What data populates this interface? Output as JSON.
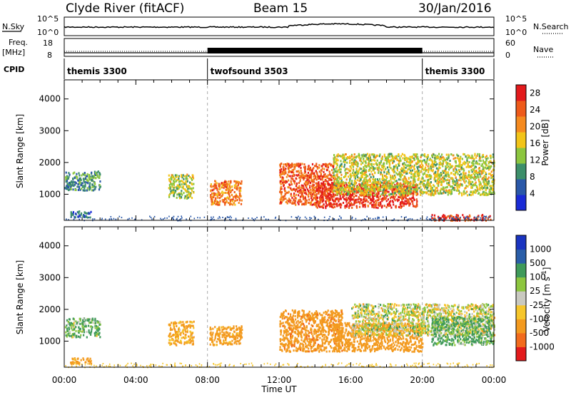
{
  "header": {
    "station": "Clyde River (fitACF)",
    "beam": "Beam 15",
    "date": "30/Jan/2016"
  },
  "top_strip": {
    "left_label": "N.Sky",
    "left_ticks": [
      "10^5",
      "10^0"
    ],
    "right_ticks": [
      "10^5",
      "10^0"
    ],
    "right_label": "N.Search"
  },
  "freq_strip": {
    "label_line1": "Freq.",
    "label_line2": "[MHz]",
    "left_ticks": [
      "18",
      "8"
    ],
    "right_ticks": [
      "60",
      "0"
    ],
    "right_label": "Nave"
  },
  "cpid": {
    "label": "CPID",
    "segments": [
      {
        "name": "themis 3300",
        "start_hour": 0,
        "end_hour": 8
      },
      {
        "name": "twofsound 3503",
        "start_hour": 8,
        "end_hour": 20
      },
      {
        "name": "themis 3300",
        "start_hour": 20,
        "end_hour": 24
      }
    ]
  },
  "colors": {
    "power_scale": [
      "#1a2bd6",
      "#2a58a8",
      "#3d8f6a",
      "#8cc63f",
      "#f2c418",
      "#f58a1f",
      "#ee5a1a",
      "#e31a1c"
    ],
    "velocity_scale": [
      "#e31a1c",
      "#f26b1d",
      "#f39a1f",
      "#f6c62b",
      "#c9c9c0",
      "#8dc63f",
      "#3f9a5a",
      "#2a5ea8",
      "#1a34c0"
    ]
  },
  "chart_data": [
    {
      "type": "heatmap",
      "quantity": "Power",
      "xlabel": "",
      "ylabel": "Slant Range [km]",
      "x_ticks": [
        "00:00",
        "04:00",
        "08:00",
        "12:00",
        "16:00",
        "20:00",
        "00:00"
      ],
      "xlim_hours": [
        0,
        24
      ],
      "ylim": [
        180,
        4600
      ],
      "y_ticks": [
        1000,
        2000,
        3000,
        4000
      ],
      "colorbar": {
        "label": "Power [dB]",
        "ticks": [
          4,
          8,
          12,
          16,
          20,
          24,
          28
        ],
        "range": [
          0,
          30
        ]
      },
      "regions": [
        {
          "t0": 0.0,
          "t1": 2.0,
          "r0": 1150,
          "r1": 1750,
          "level": 9
        },
        {
          "t0": 0.3,
          "t1": 1.5,
          "r0": 300,
          "r1": 500,
          "level": 6
        },
        {
          "t0": 5.8,
          "t1": 7.2,
          "r0": 900,
          "r1": 1650,
          "level": 14
        },
        {
          "t0": 8.1,
          "t1": 9.9,
          "r0": 700,
          "r1": 1450,
          "level": 22
        },
        {
          "t0": 12.0,
          "t1": 15.0,
          "r0": 700,
          "r1": 2000,
          "level": 24
        },
        {
          "t0": 14.0,
          "t1": 19.7,
          "r0": 600,
          "r1": 1400,
          "level": 27
        },
        {
          "t0": 15.0,
          "t1": 24.0,
          "r0": 1000,
          "r1": 2300,
          "level": 15
        },
        {
          "t0": 20.5,
          "t1": 23.8,
          "r0": 200,
          "r1": 380,
          "level": 26
        }
      ]
    },
    {
      "type": "heatmap",
      "quantity": "Velocity",
      "xlabel": "Time UT",
      "ylabel": "Slant Range [km]",
      "x_ticks": [
        "00:00",
        "04:00",
        "08:00",
        "12:00",
        "16:00",
        "20:00",
        "00:00"
      ],
      "xlim_hours": [
        0,
        24
      ],
      "ylim": [
        180,
        4600
      ],
      "y_ticks": [
        1000,
        2000,
        3000,
        4000
      ],
      "colorbar": {
        "label": "Velocity [m s^-1]",
        "ticks": [
          1000,
          500,
          100,
          25,
          -25,
          -100,
          -500,
          -1000
        ]
      },
      "regions": [
        {
          "t0": 0.0,
          "t1": 2.0,
          "r0": 1150,
          "r1": 1750,
          "level": 100
        },
        {
          "t0": 0.3,
          "t1": 1.5,
          "r0": 300,
          "r1": 500,
          "level": -200
        },
        {
          "t0": 5.8,
          "t1": 7.2,
          "r0": 900,
          "r1": 1650,
          "level": -150
        },
        {
          "t0": 8.1,
          "t1": 9.9,
          "r0": 900,
          "r1": 1500,
          "level": -200
        },
        {
          "t0": 12.0,
          "t1": 15.5,
          "r0": 700,
          "r1": 2000,
          "level": -400
        },
        {
          "t0": 15.0,
          "t1": 20.0,
          "r0": 700,
          "r1": 1600,
          "level": -300
        },
        {
          "t0": 16.0,
          "t1": 24.0,
          "r0": 1200,
          "r1": 2200,
          "level": 0
        },
        {
          "t0": 20.5,
          "t1": 24.0,
          "r0": 900,
          "r1": 1800,
          "level": 120
        }
      ]
    }
  ]
}
